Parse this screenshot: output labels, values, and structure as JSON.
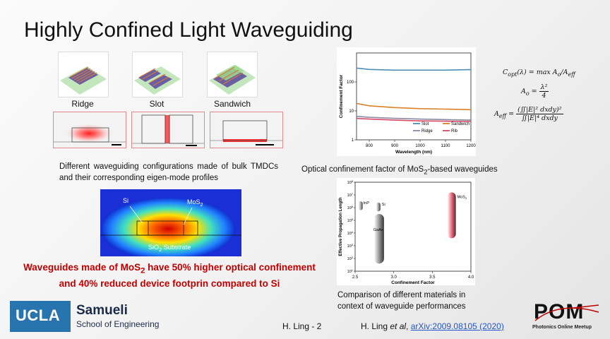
{
  "title": "Highly Confined Light Waveguiding",
  "waveguide_types": [
    "Ridge",
    "Slot",
    "Sandwich"
  ],
  "caption_configs": "Different waveguiding configurations made of bulk TMDCs and their corresponding eigen-mode profiles",
  "cross_section": {
    "si_label": "Si",
    "mos2_label": "MoS",
    "mos2_sub": "2",
    "substrate_label": "SiO",
    "substrate_sub": "2",
    "substrate_suffix": " Substrate"
  },
  "highlight": {
    "part1": "Waveguides made of MoS",
    "sub": "2",
    "part2": " have 50% higher optical confinement and 40% reduced device footprin compared to Si"
  },
  "confinement_caption": {
    "part1": "Optical confinement factor of MoS",
    "sub": "2",
    "part2": "-based waveguides"
  },
  "comparison_caption": "Comparison of different materials in context of waveguide performances",
  "equations": {
    "c_opt_lhs": "C",
    "c_opt_rhs": "(λ) = max A",
    "a_o": "A",
    "a_o_num": "λ²",
    "a_o_den": "4",
    "a_eff": "A",
    "a_eff_num": "(∬|E|² dxdy)²",
    "a_eff_den": "∬|E|⁴ dxdy"
  },
  "chart_data": [
    {
      "type": "line",
      "title": "",
      "xlabel": "Wavelength (nm)",
      "ylabel": "Confinement Factor",
      "xlim": [
        750,
        1200
      ],
      "ylim": [
        1,
        1000
      ],
      "y_scale": "log",
      "x_ticks": [
        "800",
        "900",
        "1000",
        "1100",
        "1200"
      ],
      "y_ticks": [
        "1",
        "10",
        "100"
      ],
      "legend_placement": "bottom-right",
      "series": [
        {
          "name": "Slot",
          "color": "#4f8db5",
          "x": [
            750,
            800,
            900,
            1000,
            1100,
            1200
          ],
          "values": [
            300,
            270,
            255,
            255,
            255,
            265
          ]
        },
        {
          "name": "Sandwich",
          "color": "#d9822b",
          "x": [
            750,
            800,
            900,
            1000,
            1100,
            1200
          ],
          "values": [
            18,
            15,
            13,
            12,
            11.5,
            11
          ]
        },
        {
          "name": "Ridge",
          "color": "#8a8aa0",
          "x": [
            750,
            800,
            900,
            1000,
            1100,
            1200
          ],
          "values": [
            6.5,
            6,
            5.5,
            5.2,
            5,
            4.8
          ]
        },
        {
          "name": "Rib",
          "color": "#d94a6a",
          "x": [
            750,
            800,
            900,
            1000,
            1100,
            1200
          ],
          "values": [
            5.5,
            5.2,
            4.8,
            4.5,
            4.4,
            4.3
          ]
        }
      ]
    },
    {
      "type": "scatter",
      "title": "",
      "xlabel": "Confinement Factor",
      "ylabel": "Effective Propagation Length",
      "xlim": [
        2.5,
        4.0
      ],
      "y_scale": "log",
      "ylim_exp": [
        1,
        8
      ],
      "x_ticks": [
        "2.5",
        "3.0",
        "3.5",
        "4.0"
      ],
      "y_tick_base": "10",
      "y_tick_exps": [
        "1",
        "2",
        "3",
        "4",
        "5",
        "6",
        "7",
        "8"
      ],
      "series": [
        {
          "name": "InP",
          "x": 2.57,
          "y_low_exp": 5.8,
          "y_high_exp": 6.5,
          "color": "#9a9a9a"
        },
        {
          "name": "Si",
          "x": 2.8,
          "y_low_exp": 5.7,
          "y_high_exp": 6.4,
          "color": "#8a8a8a"
        },
        {
          "name": "GaAs",
          "x": 2.81,
          "y_low_exp": 1.6,
          "y_high_exp": 5.5,
          "color": "#777777"
        },
        {
          "name": "MoS",
          "sub": "2",
          "x": 3.75,
          "y_low_exp": 3.6,
          "y_high_exp": 7.2,
          "color": "#e0405a"
        }
      ]
    }
  ],
  "footer": {
    "presenter": "H. Ling - 2",
    "ref_author": "H. Ling ",
    "ref_etal": "et al",
    "ref_sep": ", ",
    "ref_link": "arXiv:2009.08105 (2020)"
  },
  "logos": {
    "ucla": "UCLA",
    "samueli_name": "Samueli",
    "samueli_sub": "School of Engineering",
    "pom": "POM",
    "pom_sub": "Photonics Online Meetup"
  }
}
